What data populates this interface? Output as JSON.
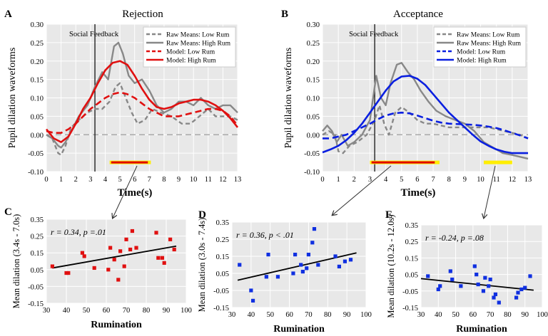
{
  "chart_data": [
    {
      "panel": "A",
      "title": "Rejection",
      "type": "line",
      "xlabel": "Time(s)",
      "ylabel": "Pupil dilation waveforms",
      "xlim": [
        0,
        13
      ],
      "ylim": [
        -0.1,
        0.3
      ],
      "xticks": [
        "0",
        "1",
        "2",
        "3",
        "4",
        "5",
        "6",
        "7",
        "8",
        "9",
        "10",
        "11",
        "12",
        "13"
      ],
      "yticks": [
        "-0.10",
        "-0.05",
        "0.00",
        "0.05",
        "0.10",
        "0.15",
        "0.20",
        "0.25",
        "0.30"
      ],
      "annotation": "Social Feedback",
      "event_x": 3.3,
      "zero_line": 0.0,
      "sig_bars": [
        {
          "color": "#ffee00",
          "x": [
            4.3,
            7.1
          ],
          "y": -0.075
        },
        {
          "color": "#e00000",
          "x": [
            4.4,
            6.9
          ],
          "y": -0.075
        }
      ],
      "series": [
        {
          "name": "Raw Means: Low Rum",
          "color": "#888888",
          "style": "dashed",
          "x": [
            0,
            0.4,
            0.8,
            1.0,
            1.3,
            1.7,
            2.2,
            2.8,
            3.3,
            3.8,
            4.3,
            4.7,
            5.0,
            5.4,
            5.8,
            6.2,
            6.7,
            7.2,
            7.8,
            8.5,
            9.2,
            9.8,
            10.4,
            11.0,
            11.5,
            12.0,
            12.5,
            13.0
          ],
          "y": [
            0.0,
            -0.01,
            -0.05,
            -0.055,
            -0.03,
            0.02,
            0.04,
            0.06,
            0.07,
            0.07,
            0.09,
            0.13,
            0.14,
            0.1,
            0.06,
            0.03,
            0.04,
            0.07,
            0.06,
            0.05,
            0.03,
            0.03,
            0.05,
            0.07,
            0.05,
            0.05,
            0.05,
            0.04
          ]
        },
        {
          "name": "Raw Means: High Rum",
          "color": "#888888",
          "style": "solid",
          "x": [
            0,
            0.4,
            0.8,
            1.0,
            1.3,
            1.7,
            2.2,
            2.8,
            3.3,
            3.8,
            4.2,
            4.6,
            4.9,
            5.2,
            5.6,
            6.0,
            6.5,
            7.0,
            7.5,
            8.0,
            8.5,
            9.0,
            9.5,
            10.0,
            10.5,
            11.0,
            11.5,
            12.0,
            12.5,
            13.0
          ],
          "y": [
            0.0,
            -0.01,
            -0.03,
            -0.035,
            -0.02,
            0.01,
            0.05,
            0.08,
            0.13,
            0.17,
            0.15,
            0.24,
            0.25,
            0.22,
            0.16,
            0.14,
            0.15,
            0.12,
            0.08,
            0.06,
            0.07,
            0.09,
            0.09,
            0.08,
            0.1,
            0.08,
            0.07,
            0.08,
            0.08,
            0.06
          ]
        },
        {
          "name": "Model: Low Rum",
          "color": "#e01010",
          "style": "dashed",
          "x": [
            0,
            0.5,
            1.0,
            1.5,
            2.0,
            2.5,
            3.0,
            3.5,
            4.0,
            4.5,
            5.0,
            5.5,
            6.0,
            6.5,
            7.0,
            7.5,
            8.0,
            8.5,
            9.0,
            9.5,
            10.0,
            10.5,
            11.0,
            11.5,
            12.0,
            12.5,
            13.0
          ],
          "y": [
            0.01,
            0.005,
            0.005,
            0.015,
            0.03,
            0.05,
            0.07,
            0.085,
            0.1,
            0.11,
            0.115,
            0.11,
            0.1,
            0.085,
            0.07,
            0.06,
            0.05,
            0.05,
            0.05,
            0.055,
            0.06,
            0.065,
            0.07,
            0.07,
            0.065,
            0.05,
            0.025
          ]
        },
        {
          "name": "Model: High Rum",
          "color": "#e01010",
          "style": "solid",
          "x": [
            0,
            0.5,
            1.0,
            1.5,
            2.0,
            2.5,
            3.0,
            3.5,
            4.0,
            4.5,
            5.0,
            5.5,
            6.0,
            6.5,
            7.0,
            7.5,
            8.0,
            8.5,
            9.0,
            9.5,
            10.0,
            10.5,
            11.0,
            11.5,
            12.0,
            12.5,
            13.0
          ],
          "y": [
            0.015,
            -0.01,
            -0.02,
            -0.005,
            0.03,
            0.07,
            0.1,
            0.14,
            0.175,
            0.195,
            0.2,
            0.19,
            0.16,
            0.125,
            0.095,
            0.075,
            0.07,
            0.075,
            0.085,
            0.09,
            0.095,
            0.095,
            0.09,
            0.08,
            0.065,
            0.045,
            0.02
          ]
        }
      ]
    },
    {
      "panel": "B",
      "title": "Acceptance",
      "type": "line",
      "xlabel": "Time(s)",
      "ylabel": "Pupil dilation waveforms",
      "xlim": [
        0,
        13
      ],
      "ylim": [
        -0.1,
        0.3
      ],
      "xticks": [
        "0",
        "1",
        "2",
        "3",
        "4",
        "5",
        "6",
        "7",
        "8",
        "9",
        "10",
        "11",
        "12",
        "13"
      ],
      "yticks": [
        "-0.10",
        "-0.05",
        "0.00",
        "0.05",
        "0.10",
        "0.15",
        "0.20",
        "0.25",
        "0.30"
      ],
      "annotation": "Social Feedback",
      "event_x": 3.3,
      "zero_line": 0.0,
      "sig_bars": [
        {
          "color": "#ffee00",
          "x": [
            3.0,
            7.4
          ],
          "y": -0.075
        },
        {
          "color": "#e00000",
          "x": [
            3.1,
            7.1
          ],
          "y": -0.075
        },
        {
          "color": "#ffee00",
          "x": [
            10.2,
            12.0
          ],
          "y": -0.075
        }
      ],
      "series": [
        {
          "name": "Raw Means: Low Rum",
          "color": "#888888",
          "style": "dashed",
          "x": [
            0,
            0.4,
            0.8,
            1.0,
            1.3,
            1.7,
            2.2,
            2.8,
            3.3,
            3.6,
            3.9,
            4.2,
            4.6,
            5.0,
            5.5,
            6.0,
            6.5,
            7.0,
            7.5,
            8.0,
            8.5,
            9.0,
            9.5,
            10.0,
            10.5,
            11.0,
            11.5,
            12.0,
            12.5,
            13.0
          ],
          "y": [
            0.0,
            0.01,
            0.0,
            -0.045,
            -0.05,
            -0.03,
            -0.02,
            0.0,
            0.04,
            0.08,
            0.03,
            0.0,
            0.06,
            0.075,
            0.06,
            0.04,
            0.03,
            0.03,
            0.025,
            0.02,
            0.02,
            0.02,
            0.02,
            0.02,
            0.02,
            0.015,
            0.01,
            0.005,
            0.0,
            -0.01
          ]
        },
        {
          "name": "Raw Means: High Rum",
          "color": "#888888",
          "style": "solid",
          "x": [
            0,
            0.3,
            0.6,
            0.9,
            1.2,
            1.6,
            2.0,
            2.5,
            3.0,
            3.4,
            3.7,
            4.0,
            4.3,
            4.7,
            5.0,
            5.4,
            5.8,
            6.2,
            6.7,
            7.2,
            7.8,
            8.4,
            9.0,
            9.6,
            10.2,
            10.8,
            11.4,
            12.0,
            12.5,
            13.0
          ],
          "y": [
            0.01,
            0.025,
            0.01,
            -0.02,
            0.0,
            -0.03,
            -0.02,
            0.0,
            0.04,
            0.16,
            0.1,
            0.08,
            0.14,
            0.19,
            0.195,
            0.17,
            0.15,
            0.12,
            0.09,
            0.065,
            0.05,
            0.04,
            0.03,
            0.01,
            -0.02,
            -0.035,
            -0.05,
            -0.055,
            -0.06,
            -0.065
          ]
        },
        {
          "name": "Model: Low Rum",
          "color": "#0a1fe0",
          "style": "dashed",
          "x": [
            0,
            0.5,
            1.0,
            1.5,
            2.0,
            2.5,
            3.0,
            3.5,
            4.0,
            4.5,
            5.0,
            5.5,
            6.0,
            6.5,
            7.0,
            7.5,
            8.0,
            8.5,
            9.0,
            9.5,
            10.0,
            10.5,
            11.0,
            11.5,
            12.0,
            12.5,
            13.0
          ],
          "y": [
            -0.01,
            -0.01,
            -0.005,
            0.0,
            0.01,
            0.02,
            0.03,
            0.042,
            0.052,
            0.058,
            0.06,
            0.058,
            0.052,
            0.045,
            0.038,
            0.033,
            0.03,
            0.029,
            0.028,
            0.027,
            0.025,
            0.022,
            0.018,
            0.012,
            0.005,
            -0.002,
            -0.01
          ]
        },
        {
          "name": "Model: High Rum",
          "color": "#0a1fe0",
          "style": "solid",
          "x": [
            0,
            0.5,
            1.0,
            1.5,
            2.0,
            2.5,
            3.0,
            3.5,
            4.0,
            4.5,
            5.0,
            5.5,
            6.0,
            6.5,
            7.0,
            7.5,
            8.0,
            8.5,
            9.0,
            9.5,
            10.0,
            10.5,
            11.0,
            11.5,
            12.0,
            12.5,
            13.0
          ],
          "y": [
            -0.048,
            -0.04,
            -0.03,
            -0.015,
            0.005,
            0.03,
            0.06,
            0.09,
            0.12,
            0.145,
            0.158,
            0.16,
            0.152,
            0.135,
            0.11,
            0.085,
            0.06,
            0.04,
            0.02,
            0.0,
            -0.018,
            -0.03,
            -0.04,
            -0.046,
            -0.05,
            -0.05,
            -0.05
          ]
        }
      ]
    },
    {
      "panel": "C",
      "type": "scatter",
      "xlabel": "Rumination",
      "ylabel": "Mean dilation (3.4s - 7.0s)",
      "xlim": [
        30,
        100
      ],
      "ylim": [
        -0.15,
        0.35
      ],
      "xticks": [
        "30",
        "40",
        "50",
        "60",
        "70",
        "80",
        "90",
        "100"
      ],
      "yticks": [
        "-0.15",
        "-0.05",
        "0.05",
        "0.15",
        "0.25",
        "0.35"
      ],
      "annotation": "r = 0.34, p =.01",
      "marker_color": "#e01010",
      "trend": {
        "x": [
          33,
          95
        ],
        "y": [
          0.06,
          0.19
        ]
      },
      "x": [
        33,
        40,
        41,
        48,
        49,
        54,
        61,
        62,
        64,
        66,
        67,
        69,
        70,
        72,
        73,
        75,
        85,
        86,
        88,
        89,
        92,
        94
      ],
      "y": [
        0.07,
        0.03,
        0.03,
        0.15,
        0.13,
        0.06,
        0.05,
        0.18,
        0.11,
        -0.01,
        0.16,
        0.07,
        0.23,
        0.17,
        0.28,
        0.18,
        0.27,
        0.12,
        0.12,
        0.09,
        0.23,
        0.17
      ]
    },
    {
      "panel": "D",
      "type": "scatter",
      "xlabel": "Rumination",
      "ylabel": "Mean dilation (3.0s - 7.4s)",
      "xlim": [
        30,
        100
      ],
      "ylim": [
        -0.15,
        0.35
      ],
      "xticks": [
        "30",
        "40",
        "50",
        "60",
        "70",
        "80",
        "90",
        "100"
      ],
      "yticks": [
        "-0.15",
        "-0.05",
        "0.05",
        "0.15",
        "0.25",
        "0.35"
      ],
      "annotation": "r = 0.36, p < .01",
      "marker_color": "#1030e0",
      "trend": {
        "x": [
          33,
          95
        ],
        "y": [
          0.01,
          0.17
        ]
      },
      "x": [
        34,
        40,
        41,
        48,
        49,
        54,
        62,
        63,
        66,
        67,
        69,
        70,
        72,
        73,
        75,
        84,
        86,
        89,
        92
      ],
      "y": [
        0.1,
        -0.05,
        -0.11,
        0.03,
        0.16,
        0.03,
        0.05,
        0.16,
        0.1,
        0.06,
        0.08,
        0.16,
        0.23,
        0.31,
        0.1,
        0.15,
        0.09,
        0.12,
        0.13
      ]
    },
    {
      "panel": "E",
      "type": "scatter",
      "xlabel": "Rumination",
      "ylabel": "Mean dilation (10.2s - 12.0s)",
      "xlim": [
        30,
        100
      ],
      "ylim": [
        -0.15,
        0.35
      ],
      "xticks": [
        "30",
        "40",
        "50",
        "60",
        "70",
        "80",
        "90",
        "100"
      ],
      "yticks": [
        "-0.15",
        "-0.05",
        "0.05",
        "0.15",
        "0.25",
        "0.35"
      ],
      "annotation": "r = -0.24, p =.08",
      "marker_color": "#1030e0",
      "trend": {
        "x": [
          30,
          95
        ],
        "y": [
          0.025,
          -0.045
        ]
      },
      "x": [
        34,
        40,
        41,
        47,
        48,
        53,
        61,
        62,
        63,
        66,
        67,
        69,
        70,
        72,
        73,
        75,
        85,
        86,
        88,
        90,
        93
      ],
      "y": [
        0.04,
        -0.04,
        -0.02,
        0.07,
        0.02,
        -0.02,
        0.1,
        0.05,
        -0.01,
        -0.05,
        0.03,
        -0.02,
        0.02,
        -0.09,
        -0.07,
        -0.12,
        -0.09,
        -0.06,
        -0.04,
        -0.03,
        0.04
      ]
    }
  ],
  "legend_labels": {
    "raw_low": "Raw Means: Low Rum",
    "raw_high": "Raw Means: High Rum",
    "model_low": "Model: Low Rum",
    "model_high": "Model: High Rum"
  },
  "panel_letters": [
    "A",
    "B",
    "C",
    "D",
    "E"
  ]
}
